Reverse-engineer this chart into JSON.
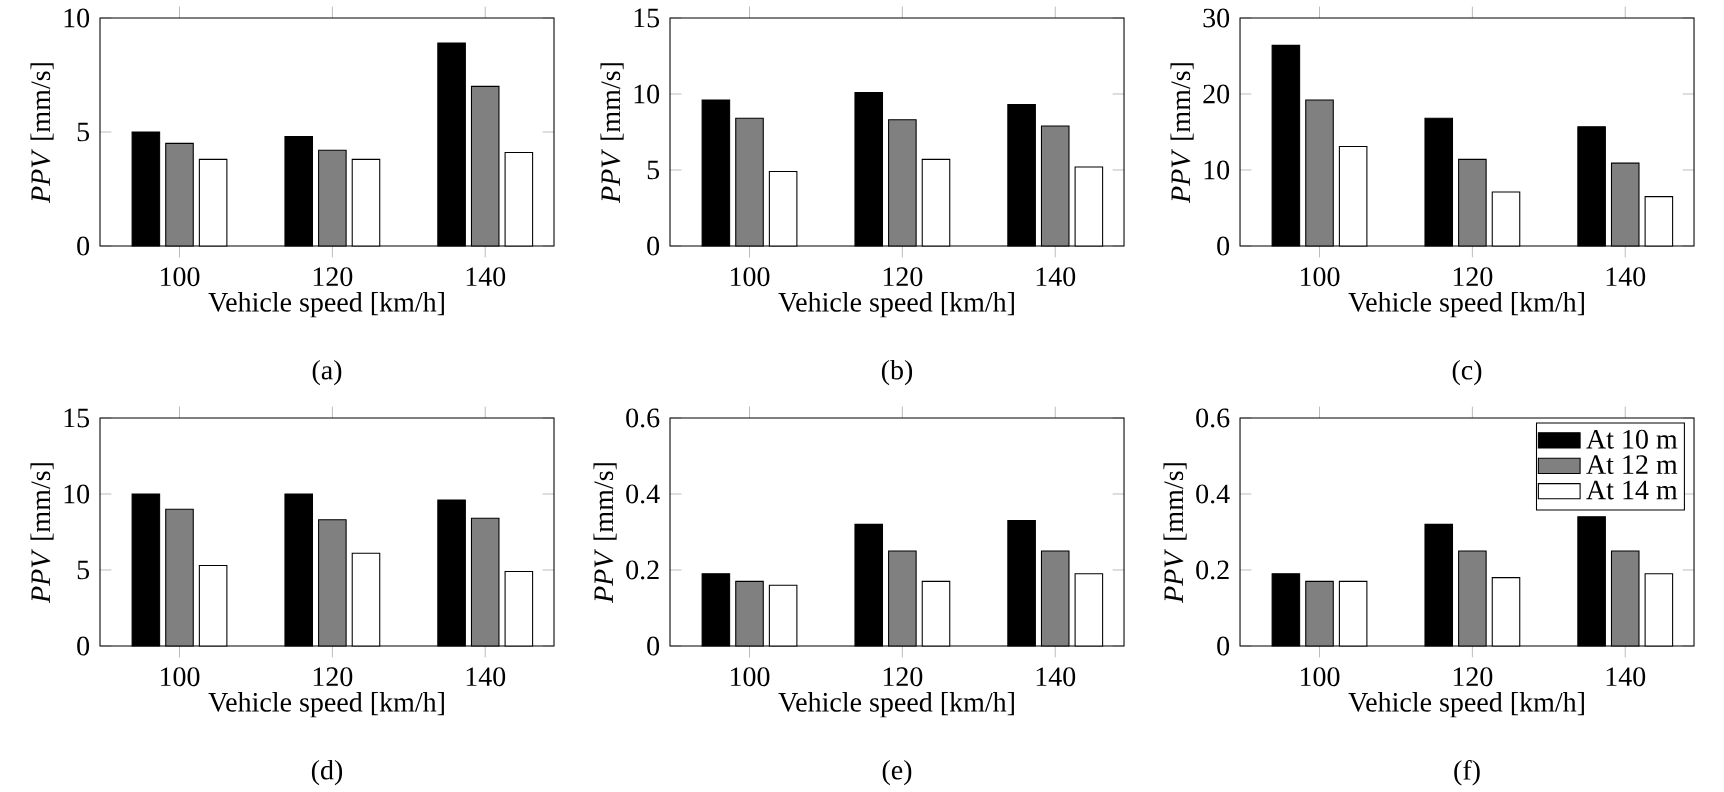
{
  "chart_data": [
    {
      "type": "bar",
      "categories": [
        "100",
        "120",
        "140"
      ],
      "xlabel": "Vehicle speed [km/h]",
      "ylabel": "*PPV* [mm/s]",
      "ylim": [
        0,
        10
      ],
      "yticks": [
        0,
        5,
        10
      ],
      "annotations": [
        "(a)"
      ],
      "series": [
        {
          "color": "#000000",
          "values": [
            5.0,
            4.8,
            8.9
          ]
        },
        {
          "color": "#808080",
          "values": [
            4.5,
            4.2,
            7.0
          ]
        },
        {
          "color": "#ffffff",
          "values": [
            3.8,
            3.8,
            4.1
          ]
        }
      ]
    },
    {
      "type": "bar",
      "categories": [
        "100",
        "120",
        "140"
      ],
      "xlabel": "Vehicle speed [km/h]",
      "ylabel": "*PPV* [mm/s]",
      "ylim": [
        0,
        15
      ],
      "yticks": [
        0,
        5,
        10,
        15
      ],
      "annotations": [
        "(b)"
      ],
      "series": [
        {
          "color": "#000000",
          "values": [
            9.6,
            10.1,
            9.3
          ]
        },
        {
          "color": "#808080",
          "values": [
            8.4,
            8.3,
            7.9
          ]
        },
        {
          "color": "#ffffff",
          "values": [
            4.9,
            5.7,
            5.2
          ]
        }
      ]
    },
    {
      "type": "bar",
      "categories": [
        "100",
        "120",
        "140"
      ],
      "xlabel": "Vehicle speed [km/h]",
      "ylabel": "*PPV* [mm/s]",
      "ylim": [
        0,
        30
      ],
      "yticks": [
        0,
        10,
        20,
        30
      ],
      "annotations": [
        "(c)"
      ],
      "series": [
        {
          "color": "#000000",
          "values": [
            26.4,
            16.8,
            15.7
          ]
        },
        {
          "color": "#808080",
          "values": [
            19.2,
            11.4,
            10.9
          ]
        },
        {
          "color": "#ffffff",
          "values": [
            13.1,
            7.1,
            6.5
          ]
        }
      ]
    },
    {
      "type": "bar",
      "categories": [
        "100",
        "120",
        "140"
      ],
      "xlabel": "Vehicle speed [km/h]",
      "ylabel": "*PPV* [mm/s]",
      "ylim": [
        0,
        15
      ],
      "yticks": [
        0,
        5,
        10,
        15
      ],
      "annotations": [
        "(d)"
      ],
      "series": [
        {
          "color": "#000000",
          "values": [
            10.0,
            10.0,
            9.6
          ]
        },
        {
          "color": "#808080",
          "values": [
            9.0,
            8.3,
            8.4
          ]
        },
        {
          "color": "#ffffff",
          "values": [
            5.3,
            6.1,
            4.9
          ]
        }
      ]
    },
    {
      "type": "bar",
      "categories": [
        "100",
        "120",
        "140"
      ],
      "xlabel": "Vehicle speed [km/h]",
      "ylabel": "*PPV* [mm/s]",
      "ylim": [
        0,
        0.6
      ],
      "yticks": [
        0,
        0.2,
        0.4,
        0.6
      ],
      "annotations": [
        "(e)"
      ],
      "series": [
        {
          "color": "#000000",
          "values": [
            0.19,
            0.32,
            0.33
          ]
        },
        {
          "color": "#808080",
          "values": [
            0.17,
            0.25,
            0.25
          ]
        },
        {
          "color": "#ffffff",
          "values": [
            0.16,
            0.17,
            0.19
          ]
        }
      ]
    },
    {
      "type": "bar",
      "categories": [
        "100",
        "120",
        "140"
      ],
      "xlabel": "Vehicle speed [km/h]",
      "ylabel": "*PPV* [mm/s]",
      "ylim": [
        0,
        0.6
      ],
      "yticks": [
        0,
        0.2,
        0.4,
        0.6
      ],
      "annotations": [
        "(f)"
      ],
      "legend": "top right",
      "series": [
        {
          "name": "At 10 m",
          "color": "#000000",
          "values": [
            0.19,
            0.32,
            0.34
          ]
        },
        {
          "name": "At 12 m",
          "color": "#808080",
          "values": [
            0.17,
            0.25,
            0.25
          ]
        },
        {
          "name": "At 14 m",
          "color": "#ffffff",
          "values": [
            0.17,
            0.18,
            0.19
          ]
        }
      ]
    }
  ]
}
